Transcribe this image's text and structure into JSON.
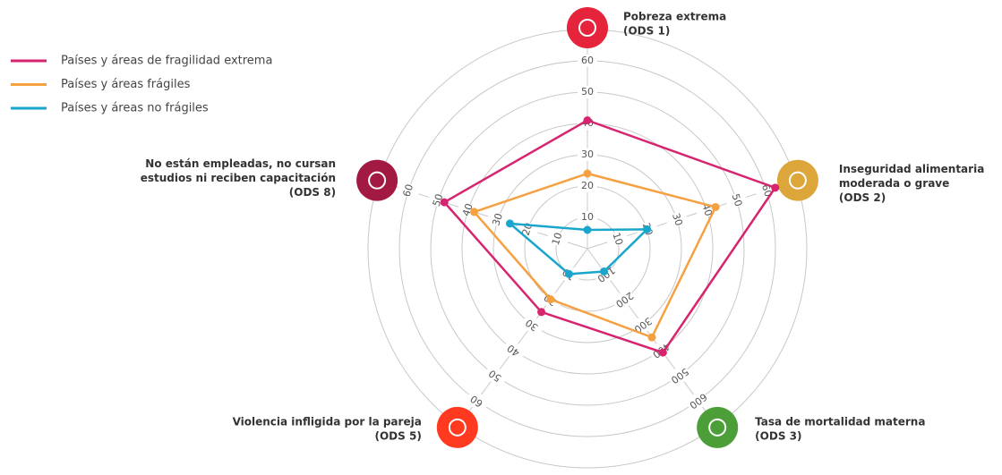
{
  "chart_data": {
    "type": "radar",
    "axes": [
      {
        "label": [
          "Pobreza extrema",
          "(ODS 1)"
        ],
        "color": "#e5243b",
        "lim": [
          0,
          70
        ],
        "ticks": [
          10,
          20,
          30,
          40,
          50,
          60
        ]
      },
      {
        "label": [
          "Inseguridad alimentaria",
          "moderada o grave",
          "(ODS 2)"
        ],
        "color": "#dda63a",
        "lim": [
          0,
          70
        ],
        "ticks": [
          10,
          20,
          30,
          40,
          50,
          60
        ]
      },
      {
        "label": [
          "Tasa de mortalidad materna",
          "(ODS 3)"
        ],
        "color": "#4c9f38",
        "lim": [
          0,
          700
        ],
        "ticks": [
          100,
          200,
          300,
          400,
          500,
          600
        ]
      },
      {
        "label": [
          "Violencia infligida por la pareja",
          "(ODS 5)"
        ],
        "color": "#ff3a21",
        "lim": [
          0,
          70
        ],
        "ticks": [
          10,
          20,
          30,
          40,
          50,
          60
        ]
      },
      {
        "label": [
          "No están empleadas, no cursan",
          "estudios ni reciben capacitación",
          "(ODS 8)"
        ],
        "color": "#a21942",
        "lim": [
          0,
          70
        ],
        "ticks": [
          10,
          20,
          30,
          40,
          50,
          60
        ]
      }
    ],
    "series": [
      {
        "name": "Países y áreas de fragilidad extrema",
        "color": "#d6246e",
        "values": [
          41,
          63,
          410,
          25,
          48
        ]
      },
      {
        "name": "Países y áreas frágiles",
        "color": "#f5a142",
        "values": [
          24,
          43,
          350,
          20,
          38
        ]
      },
      {
        "name": "Países y áreas no frágiles",
        "color": "#1aa6cc",
        "values": [
          6,
          20,
          90,
          10,
          26
        ]
      }
    ]
  }
}
